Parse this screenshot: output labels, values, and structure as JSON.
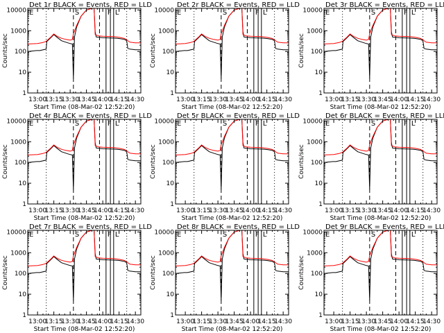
{
  "page": {
    "background": "#ffffff",
    "axis_color": "#000000",
    "events_color": "#000000",
    "lld_color": "#ff0000"
  },
  "panel_titles": [
    "Det 1r BLACK = Events, RED = LLD",
    "Det 2r BLACK = Events, RED = LLD",
    "Det 3r BLACK = Events, RED = LLD",
    "Det 4r BLACK = Events, RED = LLD",
    "Det 5r BLACK = Events, RED = LLD",
    "Det 6r BLACK = Events, RED = LLD",
    "Det 7r BLACK = Events, RED = LLD",
    "Det 8r BLACK = Events, RED = LLD",
    "Det 9r BLACK = Events, RED = LLD"
  ],
  "chart_data": {
    "type": "line",
    "layout": "3x3 grid",
    "xlabel": "Start Time (08-Mar-02 12:52:20)",
    "ylabel": "Counts/sec",
    "y_scale": "log",
    "ylim": [
      1,
      12000
    ],
    "y_ticks": [
      1,
      10,
      100,
      1000,
      10000
    ],
    "y_tick_labels": [
      "1",
      "10",
      "100",
      "1000",
      "10000"
    ],
    "xlim_minutes_from_1300": [
      -9,
      95
    ],
    "x_tick_labels": [
      "13:00",
      "13:15",
      "13:30",
      "13:45",
      "14:00",
      "14:15",
      "14:30"
    ],
    "x_tick_minutes_from_1300": [
      0,
      15,
      30,
      45,
      60,
      75,
      90
    ],
    "markers": [
      {
        "label": "E",
        "minute": -9,
        "style": "solid"
      },
      {
        "label": "",
        "minute": 8,
        "style": "dotted"
      },
      {
        "label": "S",
        "minute": 33,
        "style": "dashed"
      },
      {
        "label": "",
        "minute": 57,
        "style": "dashed"
      },
      {
        "label": "F",
        "minute": 63,
        "style": "solid"
      },
      {
        "label": "",
        "minute": 67,
        "style": "solid"
      },
      {
        "label": "L",
        "minute": 70,
        "style": "solid"
      },
      {
        "label": "",
        "minute": 82,
        "style": "dotted"
      }
    ],
    "series": [
      {
        "name": "Events",
        "color": "#000000",
        "x": [
          -9,
          -1,
          0,
          2,
          8,
          8.5,
          12,
          15,
          18,
          22,
          26,
          30,
          32,
          33,
          34,
          36,
          40,
          45,
          50,
          52,
          53,
          54,
          56,
          60,
          65,
          70,
          75,
          80,
          82,
          83,
          85,
          90,
          95
        ],
        "y": [
          100,
          110,
          110,
          110,
          130,
          300,
          450,
          650,
          480,
          330,
          280,
          240,
          230,
          5,
          500,
          1500,
          5000,
          10000,
          12000,
          12000,
          900,
          500,
          480,
          460,
          450,
          440,
          420,
          380,
          330,
          140,
          130,
          120,
          120
        ]
      },
      {
        "name": "LLD",
        "color": "#ff0000",
        "x": [
          -9,
          0,
          5,
          8,
          12,
          15,
          18,
          22,
          26,
          30,
          32,
          33,
          36,
          40,
          45,
          50,
          52,
          53,
          56,
          60,
          65,
          70,
          75,
          80,
          82,
          85,
          90,
          95
        ],
        "y": [
          230,
          240,
          270,
          310,
          480,
          700,
          540,
          430,
          380,
          350,
          380,
          700,
          1800,
          5000,
          10000,
          12000,
          12000,
          650,
          560,
          540,
          530,
          520,
          480,
          420,
          360,
          280,
          260,
          260
        ]
      }
    ]
  }
}
